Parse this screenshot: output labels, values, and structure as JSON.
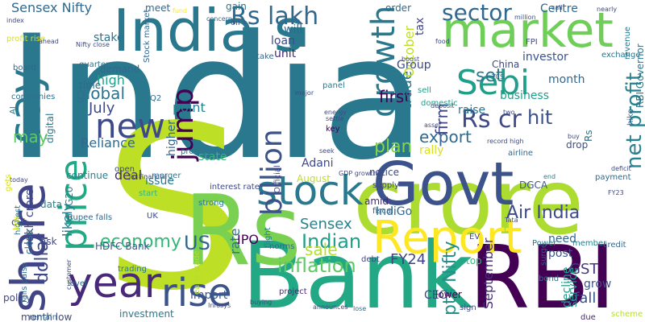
{
  "words": [
    {
      "text": "India",
      "color": "#2a788e",
      "slug": "india"
    },
    {
      "text": "S",
      "color": "#bddf26",
      "slug": "s"
    },
    {
      "text": "crore",
      "color": "#addc30",
      "slug": "crore"
    },
    {
      "text": "RBI",
      "color": "#440154",
      "slug": "rbi"
    },
    {
      "text": "Bank",
      "color": "#22a884",
      "slug": "bank"
    },
    {
      "text": "Rs",
      "color": "#7ad151",
      "slug": "rs"
    },
    {
      "text": "Govt",
      "color": "#3b528b",
      "slug": "govt"
    },
    {
      "text": "India s",
      "color": "#2a788e",
      "slug": "india-s"
    },
    {
      "text": "market",
      "color": "#6ece58",
      "slug": "market"
    },
    {
      "text": "share",
      "color": "#414487",
      "slug": "share"
    },
    {
      "text": "say",
      "color": "#2a788e",
      "slug": "say"
    },
    {
      "text": "Report",
      "color": "#fde725",
      "slug": "report"
    },
    {
      "text": "stock",
      "color": "#2a788e",
      "slug": "stock"
    },
    {
      "text": "year",
      "color": "#482878",
      "slug": "year"
    },
    {
      "text": "rise",
      "color": "#3b528b",
      "slug": "rise"
    },
    {
      "text": "price",
      "color": "#22a884",
      "slug": "price"
    },
    {
      "text": "Sebi",
      "color": "#1f9e89",
      "slug": "sebi"
    },
    {
      "text": "new",
      "color": "#3e4989",
      "slug": "new"
    },
    {
      "text": "growth",
      "color": "#2a788e",
      "slug": "growth"
    },
    {
      "text": "billion",
      "color": "#3b528b",
      "slug": "billion"
    },
    {
      "text": "jump",
      "color": "#440154",
      "slug": "jump"
    },
    {
      "text": "Rs lakh",
      "color": "#31688e",
      "slug": "rs-lakh"
    },
    {
      "text": "sector",
      "color": "#31688e",
      "slug": "sector"
    },
    {
      "text": "Rs cr",
      "color": "#3e4989",
      "slug": "rs-cr"
    },
    {
      "text": "net profit",
      "color": "#26828e",
      "slug": "net-profit"
    },
    {
      "text": "Sensex Nifty",
      "color": "#31688e",
      "slug": "sensex-nifty"
    },
    {
      "text": "Indian",
      "color": "#1f9e89",
      "slug": "indian"
    },
    {
      "text": "US",
      "color": "#31688e",
      "slug": "us"
    },
    {
      "text": "Air India",
      "color": "#3e4989",
      "slug": "air-india"
    },
    {
      "text": "IndiGo",
      "color": "#31688e",
      "slug": "indigo"
    },
    {
      "text": "inflation",
      "color": "#5ec962",
      "slug": "inflation"
    },
    {
      "text": "economy",
      "color": "#35b779",
      "slug": "economy"
    },
    {
      "text": "dollar",
      "color": "#3e4989",
      "slug": "dollar"
    },
    {
      "text": "Sensex",
      "color": "#26828e",
      "slug": "sensex"
    },
    {
      "text": "sale",
      "color": "#b5de2b",
      "slug": "sale"
    },
    {
      "text": "pts Nifty",
      "color": "#21918c",
      "slug": "pts-nifty"
    },
    {
      "text": "September",
      "color": "#472d7b",
      "slug": "september"
    },
    {
      "text": "FY24",
      "color": "#414487",
      "slug": "fy24"
    },
    {
      "text": "GST",
      "color": "#443983",
      "slug": "gst"
    },
    {
      "text": "fall",
      "color": "#3b528b",
      "slug": "fall"
    },
    {
      "text": "hit",
      "color": "#3b528b",
      "slug": "hit"
    },
    {
      "text": "export",
      "color": "#31688e",
      "slug": "export"
    },
    {
      "text": "plan",
      "color": "#84d44b",
      "slug": "plan"
    },
    {
      "text": "global",
      "color": "#2c728e",
      "slug": "global"
    },
    {
      "text": "July",
      "color": "#3e4989",
      "slug": "july"
    },
    {
      "text": "may",
      "color": "#5ec962",
      "slug": "may"
    },
    {
      "text": "first",
      "color": "#440154",
      "slug": "first"
    },
    {
      "text": "set",
      "color": "#2a788e",
      "slug": "set"
    },
    {
      "text": "month",
      "color": "#31688e",
      "slug": "month"
    },
    {
      "text": "business",
      "color": "#1f9e89",
      "slug": "business"
    },
    {
      "text": "raise",
      "color": "#2c728e",
      "slug": "raise"
    },
    {
      "text": "firm",
      "color": "#414487",
      "slug": "firm"
    },
    {
      "text": "trade",
      "color": "#2a788e",
      "slug": "trade"
    },
    {
      "text": "October",
      "color": "#bddf26",
      "slug": "october"
    },
    {
      "text": "Adani",
      "color": "#3e4989",
      "slug": "adani"
    },
    {
      "text": "rally",
      "color": "#d8e219",
      "slug": "rally"
    },
    {
      "text": "investor",
      "color": "#3b528b",
      "slug": "investor"
    },
    {
      "text": "Group",
      "color": "#3e4989",
      "slug": "group"
    },
    {
      "text": "Reliance",
      "color": "#31688e",
      "slug": "reliance"
    },
    {
      "text": "high",
      "color": "#1f9e89",
      "slug": "high"
    },
    {
      "text": "point",
      "color": "#26828e",
      "slug": "point"
    },
    {
      "text": "state",
      "color": "#35b779",
      "slug": "state"
    },
    {
      "text": "deal",
      "color": "#482878",
      "slug": "deal"
    },
    {
      "text": "issue",
      "color": "#2a788e",
      "slug": "issue"
    },
    {
      "text": "higher",
      "color": "#31688e",
      "slug": "higher"
    },
    {
      "text": "import",
      "color": "#38598c",
      "slug": "import"
    },
    {
      "text": "rate",
      "color": "#2c728e",
      "slug": "rate"
    },
    {
      "text": "likely",
      "color": "#2a788e",
      "slug": "likely"
    },
    {
      "text": "HDFC Bank",
      "color": "#38598c",
      "slug": "hdfc-bank"
    },
    {
      "text": "investment",
      "color": "#2a788e",
      "slug": "investment"
    },
    {
      "text": "IPO",
      "color": "#440154",
      "slug": "ipo"
    },
    {
      "text": "CEO",
      "color": "#3e4989",
      "slug": "ceo"
    },
    {
      "text": "top",
      "color": "#35b779",
      "slug": "top"
    },
    {
      "text": "need",
      "color": "#31688e",
      "slug": "need"
    },
    {
      "text": "post",
      "color": "#3b528b",
      "slug": "post"
    },
    {
      "text": "grow",
      "color": "#3b528b",
      "slug": "grow"
    },
    {
      "text": "service",
      "color": "#1f9e89",
      "slug": "service"
    },
    {
      "text": "decline",
      "color": "#1f9e89",
      "slug": "decline"
    },
    {
      "text": "lower",
      "color": "#440154",
      "slug": "lower"
    },
    {
      "text": "Centre",
      "color": "#31688e",
      "slug": "centre"
    },
    {
      "text": "tax",
      "color": "#414487",
      "slug": "tax"
    },
    {
      "text": "order",
      "color": "#31688e",
      "slug": "order"
    },
    {
      "text": "meet",
      "color": "#31688e",
      "slug": "meet"
    },
    {
      "text": "gain",
      "color": "#2a788e",
      "slug": "gain"
    },
    {
      "text": "will",
      "color": "#31688e",
      "slug": "will"
    },
    {
      "text": "loan",
      "color": "#3e4989",
      "slug": "loan"
    },
    {
      "text": "unit",
      "color": "#482878",
      "slug": "unit"
    },
    {
      "text": "stake",
      "color": "#2c728e",
      "slug": "stake"
    },
    {
      "text": "demand",
      "color": "#31688e",
      "slug": "demand"
    },
    {
      "text": "time",
      "color": "#31688e",
      "slug": "time"
    },
    {
      "text": "continue",
      "color": "#26828e",
      "slug": "continue"
    },
    {
      "text": "data",
      "color": "#26828e",
      "slug": "data"
    },
    {
      "text": "lakh crore",
      "color": "#3e4989",
      "slug": "lakh-crore"
    },
    {
      "text": "close",
      "color": "#2c728e",
      "slug": "close"
    },
    {
      "text": "digital",
      "color": "#2a788e",
      "slug": "digital"
    },
    {
      "text": "notice",
      "color": "#3e4989",
      "slug": "notice"
    },
    {
      "text": "August",
      "color": "#bddf26",
      "slug": "august"
    },
    {
      "text": "China",
      "color": "#3e4989",
      "slug": "china"
    },
    {
      "text": "DGCA",
      "color": "#38598c",
      "slug": "dgca"
    },
    {
      "text": "RBI Governor",
      "color": "#2a788e",
      "slug": "rbi-governor"
    },
    {
      "text": "amid",
      "color": "#482878",
      "slug": "amid"
    },
    {
      "text": "key",
      "color": "#440154",
      "slug": "key"
    },
    {
      "text": "sell",
      "color": "#1f9e89",
      "slug": "sell"
    },
    {
      "text": "Rs",
      "color": "#2c728e",
      "slug": "rs-small"
    },
    {
      "text": "drop",
      "color": "#3b528b",
      "slug": "drop"
    },
    {
      "text": "panel",
      "color": "#2a788e",
      "slug": "panel"
    },
    {
      "text": "take",
      "color": "#31688e",
      "slug": "take"
    },
    {
      "text": "profit jumps",
      "color": "#2a788e",
      "slug": "profit-jumps"
    },
    {
      "text": "merger",
      "color": "#2a788e",
      "slug": "merger"
    },
    {
      "text": "strong",
      "color": "#2a788e",
      "slug": "strong"
    },
    {
      "text": "start",
      "color": "#35b779",
      "slug": "start"
    },
    {
      "text": "interest rate",
      "color": "#3e4989",
      "slug": "interest-rate"
    },
    {
      "text": "cut",
      "color": "#3e4989",
      "slug": "cut"
    },
    {
      "text": "ask",
      "color": "#3e4989",
      "slug": "ask"
    },
    {
      "text": "G20",
      "color": "#26828e",
      "slug": "g20"
    },
    {
      "text": "Rupee falls",
      "color": "#31688e",
      "slug": "rupee-falls"
    },
    {
      "text": "trading",
      "color": "#2a788e",
      "slug": "trading"
    },
    {
      "text": "level",
      "color": "#2c728e",
      "slug": "level"
    },
    {
      "text": "policy",
      "color": "#3e4989",
      "slug": "policy"
    },
    {
      "text": "month low",
      "color": "#3e4989",
      "slug": "month-low"
    },
    {
      "text": "falls paise",
      "color": "#31688e",
      "slug": "falls-paise"
    },
    {
      "text": "highest",
      "color": "#2a788e",
      "slug": "highest"
    },
    {
      "text": "remain",
      "color": "#31688e",
      "slug": "remain"
    },
    {
      "text": "board",
      "color": "#31688e",
      "slug": "board"
    },
    {
      "text": "companies",
      "color": "#2c728e",
      "slug": "companies"
    },
    {
      "text": "profit rise",
      "color": "#d8e219",
      "slug": "profit-rise"
    },
    {
      "text": "AI",
      "color": "#2a788e",
      "slug": "ai"
    },
    {
      "text": "quarter",
      "color": "#2c728e",
      "slug": "quarter"
    },
    {
      "text": "Q2",
      "color": "#31688e",
      "slug": "q2"
    },
    {
      "text": "Stock market",
      "color": "#31688e",
      "slug": "stock-market"
    },
    {
      "text": "oil",
      "color": "#3b528b",
      "slug": "oil"
    },
    {
      "text": "fund",
      "color": "#fde725",
      "slug": "fund"
    },
    {
      "text": "concern",
      "color": "#31688e",
      "slug": "concern"
    },
    {
      "text": "million",
      "color": "#3b528b",
      "slug": "million"
    },
    {
      "text": "call",
      "color": "#3b528b",
      "slug": "call"
    },
    {
      "text": "nearly",
      "color": "#3e4989",
      "slug": "nearly"
    },
    {
      "text": "food",
      "color": "#3e4989",
      "slug": "food"
    },
    {
      "text": "FPI",
      "color": "#3e4989",
      "slug": "fpi"
    },
    {
      "text": "exchange",
      "color": "#2c728e",
      "slug": "exchange"
    },
    {
      "text": "revenue",
      "color": "#2a788e",
      "slug": "revenue"
    },
    {
      "text": "hike",
      "color": "#31688e",
      "slug": "hike"
    },
    {
      "text": "TCS",
      "color": "#31688e",
      "slug": "tcs"
    },
    {
      "text": "domestic",
      "color": "#1f9e89",
      "slug": "domestic"
    },
    {
      "text": "two",
      "color": "#3e4989",
      "slug": "two"
    },
    {
      "text": "airline",
      "color": "#31688e",
      "slug": "airline"
    },
    {
      "text": "end",
      "color": "#26828e",
      "slug": "end"
    },
    {
      "text": "payment",
      "color": "#31688e",
      "slug": "payment"
    },
    {
      "text": "supply",
      "color": "#414487",
      "slug": "supply"
    },
    {
      "text": "fiscal",
      "color": "#31688e",
      "slug": "fiscal"
    },
    {
      "text": "EV",
      "color": "#3e4989",
      "slug": "ev"
    },
    {
      "text": "Power",
      "color": "#2a788e",
      "slug": "power"
    },
    {
      "text": "member",
      "color": "#26828e",
      "slug": "member"
    },
    {
      "text": "credit",
      "color": "#31688e",
      "slug": "credit"
    },
    {
      "text": "surge",
      "color": "#3b528b",
      "slug": "surge"
    },
    {
      "text": "bond",
      "color": "#2c728e",
      "slug": "bond"
    },
    {
      "text": "due",
      "color": "#482878",
      "slug": "due"
    },
    {
      "text": "sign",
      "color": "#3e4989",
      "slug": "sign"
    },
    {
      "text": "project",
      "color": "#482878",
      "slug": "project"
    },
    {
      "text": "norms",
      "color": "#31688e",
      "slug": "norms"
    },
    {
      "text": "debt",
      "color": "#3e4989",
      "slug": "debt"
    },
    {
      "text": "flight",
      "color": "#26828e",
      "slug": "flight"
    },
    {
      "text": "UK",
      "color": "#3e4989",
      "slug": "uk"
    },
    {
      "text": "Official",
      "color": "#3e4989",
      "slug": "official"
    },
    {
      "text": "open",
      "color": "#3e4989",
      "slug": "open"
    },
    {
      "text": "seek",
      "color": "#3e4989",
      "slug": "seek"
    },
    {
      "text": "lose",
      "color": "#31688e",
      "slug": "lose"
    },
    {
      "text": "index",
      "color": "#3e4989",
      "slug": "index"
    },
    {
      "text": "ahead",
      "color": "#3e4989",
      "slug": "ahead"
    },
    {
      "text": "early trade",
      "color": "#b5de2b",
      "slug": "early-trade"
    },
    {
      "text": "boost",
      "color": "#3e4989",
      "slug": "boost"
    },
    {
      "text": "settle",
      "color": "#3e4989",
      "slug": "settle"
    },
    {
      "text": "energy",
      "color": "#3e4989",
      "slug": "energy"
    },
    {
      "text": "GDP growth",
      "color": "#3e4989",
      "slug": "gdp-growth"
    },
    {
      "text": "record high",
      "color": "#3e4989",
      "slug": "record-high"
    },
    {
      "text": "buy",
      "color": "#3e4989",
      "slug": "buy"
    },
    {
      "text": "deficit",
      "color": "#3e4989",
      "slug": "deficit"
    },
    {
      "text": "scheme",
      "color": "#b5de2b",
      "slug": "scheme"
    },
    {
      "text": "announces",
      "color": "#3e4989",
      "slug": "announces"
    },
    {
      "text": "buying",
      "color": "#3e4989",
      "slug": "buying"
    },
    {
      "text": "Infosys",
      "color": "#3e4989",
      "slug": "infosys"
    },
    {
      "text": "customer",
      "color": "#3e4989",
      "slug": "customer"
    },
    {
      "text": "today",
      "color": "#3e4989",
      "slug": "today"
    },
    {
      "text": "gets",
      "color": "#d8e219",
      "slug": "gets"
    },
    {
      "text": "low",
      "color": "#d8e219",
      "slug": "low"
    },
    {
      "text": "Jio Financial",
      "color": "#3e4989",
      "slug": "jio-financial"
    },
    {
      "text": "Nifty close",
      "color": "#3e4989",
      "slug": "nifty-close"
    },
    {
      "text": "Tata",
      "color": "#3e4989",
      "slug": "tata"
    },
    {
      "text": "asset",
      "color": "#3e4989",
      "slug": "asset"
    },
    {
      "text": "major",
      "color": "#3e4989",
      "slug": "major"
    },
    {
      "text": "FY23",
      "color": "#3e4989",
      "slug": "fy23"
    },
    {
      "text": "deposit",
      "color": "#3e4989",
      "slug": "deposit"
    }
  ]
}
